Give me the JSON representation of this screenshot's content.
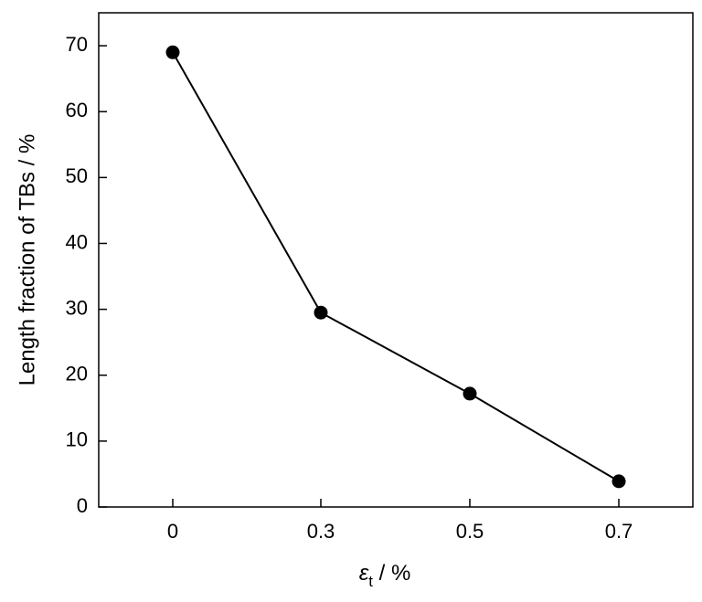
{
  "chart_data": {
    "type": "line",
    "title": "",
    "xlabel": {
      "symbol": "ε",
      "subscript": "t",
      "suffix": " / %"
    },
    "ylabel": "Length fraction of TBs / %",
    "categories": [
      "0",
      "0.3",
      "0.5",
      "0.7"
    ],
    "series": [
      {
        "values": [
          69,
          29.5,
          17.2,
          3.9
        ],
        "color": "#000000",
        "marker": "filled-circle"
      }
    ],
    "ylim": [
      0,
      75
    ],
    "yticks": [
      0,
      10,
      20,
      30,
      40,
      50,
      60,
      70
    ],
    "grid": false,
    "legend": "none"
  }
}
